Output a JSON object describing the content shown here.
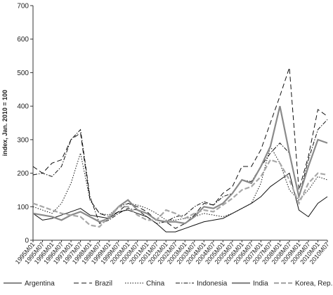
{
  "chart_data": {
    "type": "line",
    "y_label": "index, Jan. 2010 = 100",
    "categories": [
      "1995M01",
      "1995M07",
      "1996M01",
      "1996M07",
      "1997M01",
      "1997M07",
      "1998M01",
      "1998M07",
      "1999M01",
      "1999M07",
      "2000M01",
      "2000M07",
      "2001M01",
      "2001M07",
      "2002M01",
      "2002M07",
      "2003M01",
      "2003M07",
      "2004M01",
      "2004M07",
      "2005M01",
      "2005M07",
      "2006M01",
      "2006M07",
      "2007M01",
      "2007M07",
      "2008M01",
      "2008M07",
      "2009M01",
      "2009M07",
      "2010M01",
      "2010M07"
    ],
    "ylim": [
      0,
      700
    ],
    "yticks": [
      0,
      100,
      200,
      300,
      400,
      500,
      600,
      700
    ],
    "series": [
      {
        "name": "Argentina",
        "color": "#111111",
        "dash": "none",
        "values": [
          80,
          60,
          65,
          75,
          85,
          95,
          75,
          70,
          65,
          85,
          90,
          80,
          70,
          50,
          25,
          25,
          35,
          45,
          55,
          60,
          65,
          80,
          95,
          110,
          130,
          160,
          180,
          200,
          90,
          70,
          110,
          130
        ]
      },
      {
        "name": "Brazil",
        "color": "#111111",
        "dash": "7,4",
        "values": [
          220,
          200,
          230,
          240,
          300,
          320,
          120,
          80,
          70,
          85,
          110,
          100,
          85,
          60,
          55,
          35,
          50,
          75,
          110,
          105,
          140,
          160,
          220,
          220,
          270,
          350,
          430,
          515,
          150,
          250,
          390,
          370
        ]
      },
      {
        "name": "China",
        "color": "#111111",
        "dash": "1.5,2",
        "values": [
          100,
          90,
          80,
          110,
          170,
          260,
          120,
          80,
          75,
          100,
          110,
          105,
          95,
          80,
          60,
          60,
          65,
          70,
          80,
          75,
          70,
          80,
          95,
          110,
          170,
          280,
          230,
          150,
          120,
          150,
          190,
          180
        ]
      },
      {
        "name": "Indonesia",
        "color": "#111111",
        "dash": "6,2,1.5,2",
        "values": [
          195,
          200,
          190,
          220,
          300,
          330,
          130,
          50,
          60,
          80,
          95,
          90,
          70,
          50,
          55,
          70,
          75,
          100,
          115,
          105,
          130,
          140,
          180,
          175,
          220,
          260,
          290,
          260,
          130,
          240,
          330,
          360
        ]
      },
      {
        "name": "India",
        "color": "#8a8a8a",
        "dash": "none",
        "values": [
          80,
          75,
          70,
          60,
          75,
          85,
          70,
          55,
          65,
          100,
          120,
          90,
          80,
          60,
          55,
          55,
          50,
          70,
          100,
          95,
          110,
          140,
          180,
          170,
          220,
          280,
          400,
          260,
          130,
          220,
          300,
          290
        ]
      },
      {
        "name": "Korea, Rep.",
        "color": "#a8a8a8",
        "dash": "7,3",
        "values": [
          110,
          100,
          90,
          80,
          75,
          70,
          45,
          40,
          70,
          100,
          100,
          75,
          60,
          60,
          90,
          80,
          65,
          80,
          90,
          85,
          105,
          125,
          150,
          160,
          190,
          240,
          230,
          180,
          110,
          170,
          200,
          195
        ]
      }
    ]
  }
}
